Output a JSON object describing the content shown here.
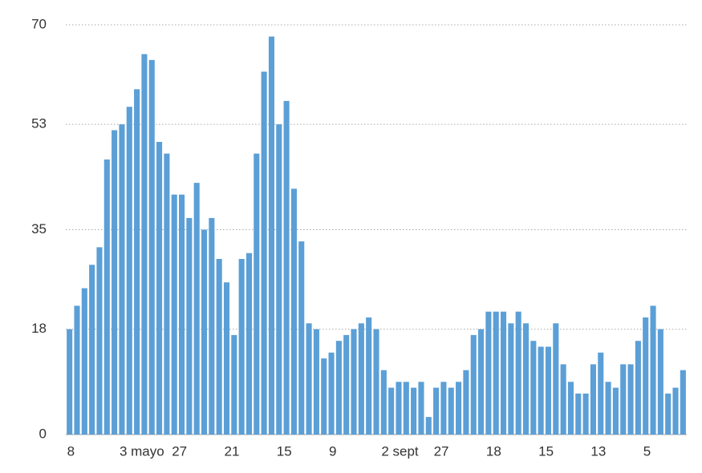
{
  "chart_data": {
    "type": "bar",
    "color": "#5b9fd6",
    "categories": [
      "8",
      null,
      null,
      null,
      null,
      null,
      null,
      "3 mayo",
      null,
      null,
      null,
      null,
      null,
      null,
      "27",
      null,
      null,
      null,
      null,
      null,
      null,
      "21",
      null,
      null,
      null,
      null,
      null,
      null,
      "15",
      null,
      null,
      null,
      null,
      null,
      null,
      "9",
      null,
      null,
      null,
      null,
      null,
      null,
      "2 sept",
      null,
      null,
      null,
      null,
      null,
      null,
      "27",
      null,
      null,
      null,
      null,
      null,
      null,
      "18",
      null,
      null,
      null,
      null,
      null,
      null,
      "15",
      null,
      null,
      null,
      null,
      null,
      null,
      "13",
      null,
      null,
      null,
      null,
      null,
      null,
      "5",
      null,
      null,
      null,
      null,
      null
    ],
    "values": [
      18,
      22,
      25,
      29,
      32,
      47,
      52,
      53,
      56,
      59,
      65,
      64,
      50,
      48,
      41,
      41,
      37,
      43,
      35,
      37,
      30,
      26,
      17,
      30,
      31,
      48,
      62,
      68,
      53,
      57,
      42,
      33,
      19,
      18,
      13,
      14,
      16,
      17,
      18,
      19,
      20,
      18,
      11,
      8,
      9,
      9,
      8,
      9,
      3,
      8,
      9,
      8,
      9,
      11,
      17,
      18,
      21,
      21,
      21,
      19,
      21,
      19,
      16,
      15,
      15,
      19,
      12,
      9,
      7,
      7,
      12,
      14,
      9,
      8,
      12,
      12,
      16,
      20,
      22,
      18,
      7,
      8,
      11
    ],
    "ylim": [
      0,
      70
    ],
    "yticks": [
      0,
      18,
      35,
      53,
      70
    ],
    "grid": true
  }
}
